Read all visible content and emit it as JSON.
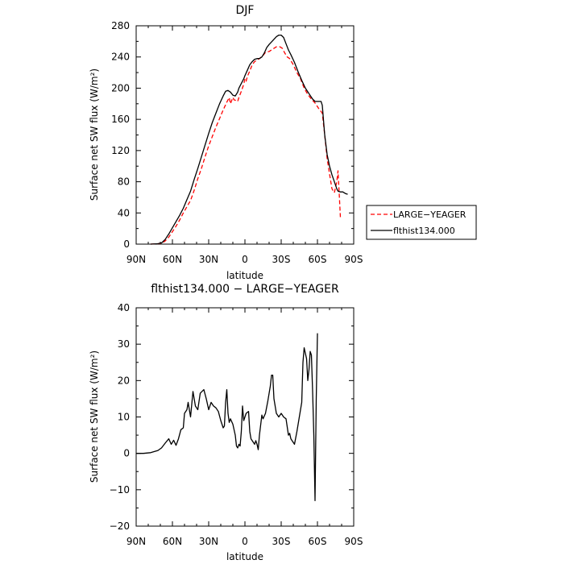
{
  "chart_data": [
    {
      "type": "line",
      "title": "DJF",
      "xlabel": "latitude",
      "ylabel": "Surface net SW flux (W/m²)",
      "xlim": [
        90,
        -90
      ],
      "ylim": [
        0,
        280
      ],
      "xticks": [
        90,
        60,
        30,
        0,
        -30,
        -60,
        -90
      ],
      "xtick_labels": [
        "90N",
        "60N",
        "30N",
        "0",
        "30S",
        "60S",
        "90S"
      ],
      "yticks": [
        0,
        40,
        80,
        120,
        160,
        200,
        240,
        280
      ],
      "ytick_labels": [
        "0",
        "40",
        "80",
        "120",
        "160",
        "200",
        "240",
        "280"
      ],
      "legend": "right",
      "series": [
        {
          "name": "LARGE−YEAGER",
          "color": "#ff0000",
          "dash": true,
          "points": [
            [
              78,
              0
            ],
            [
              72,
              0.5
            ],
            [
              69,
              1
            ],
            [
              66,
              4
            ],
            [
              63,
              9
            ],
            [
              60,
              16
            ],
            [
              57,
              23
            ],
            [
              54,
              31
            ],
            [
              51,
              40
            ],
            [
              48,
              48
            ],
            [
              45,
              56
            ],
            [
              42,
              69
            ],
            [
              39,
              84
            ],
            [
              36,
              97
            ],
            [
              33,
              112
            ],
            [
              30,
              126
            ],
            [
              27,
              138
            ],
            [
              24,
              150
            ],
            [
              21,
              161
            ],
            [
              18,
              172
            ],
            [
              15,
              182
            ],
            [
              13,
              188
            ],
            [
              12,
              180
            ],
            [
              11,
              184
            ],
            [
              10,
              188
            ],
            [
              9,
              185
            ],
            [
              7,
              184
            ],
            [
              6,
              183
            ],
            [
              5,
              188
            ],
            [
              3,
              196
            ],
            [
              1,
              205
            ],
            [
              0,
              212
            ],
            [
              -1,
              209
            ],
            [
              -2,
              215
            ],
            [
              -4,
              222
            ],
            [
              -6,
              230
            ],
            [
              -8,
              234
            ],
            [
              -10,
              236
            ],
            [
              -12,
              238
            ],
            [
              -15,
              242
            ],
            [
              -17,
              246
            ],
            [
              -20,
              247
            ],
            [
              -23,
              250
            ],
            [
              -26,
              253
            ],
            [
              -29,
              253
            ],
            [
              -31,
              251
            ],
            [
              -33,
              245
            ],
            [
              -35,
              240
            ],
            [
              -37,
              238
            ],
            [
              -40,
              230
            ],
            [
              -43,
              220
            ],
            [
              -46,
              212
            ],
            [
              -49,
              200
            ],
            [
              -52,
              192
            ],
            [
              -55,
              186
            ],
            [
              -58,
              181
            ],
            [
              -61,
              174
            ],
            [
              -64,
              168
            ],
            [
              -66,
              140
            ],
            [
              -68,
              110
            ],
            [
              -70,
              90
            ],
            [
              -72,
              71
            ],
            [
              -74,
              66
            ],
            [
              -76,
              80
            ],
            [
              -77,
              94
            ],
            [
              -78,
              65
            ],
            [
              -79,
              34
            ]
          ]
        },
        {
          "name": "flthist134.000",
          "color": "#000000",
          "dash": false,
          "points": [
            [
              78,
              0
            ],
            [
              72,
              0.5
            ],
            [
              69,
              1.5
            ],
            [
              66,
              6
            ],
            [
              63,
              13
            ],
            [
              60,
              21
            ],
            [
              57,
              29
            ],
            [
              54,
              37
            ],
            [
              51,
              46
            ],
            [
              48,
              57
            ],
            [
              45,
              68
            ],
            [
              42,
              83
            ],
            [
              39,
              97
            ],
            [
              36,
              112
            ],
            [
              33,
              127
            ],
            [
              30,
              142
            ],
            [
              27,
              156
            ],
            [
              24,
              168
            ],
            [
              21,
              180
            ],
            [
              18,
              190
            ],
            [
              16,
              196
            ],
            [
              14,
              197
            ],
            [
              12,
              195
            ],
            [
              10,
              191
            ],
            [
              8,
              190
            ],
            [
              6,
              195
            ],
            [
              5,
              200
            ],
            [
              3,
              206
            ],
            [
              1,
              212
            ],
            [
              0,
              216
            ],
            [
              -2,
              223
            ],
            [
              -4,
              230
            ],
            [
              -6,
              234
            ],
            [
              -8,
              237
            ],
            [
              -10,
              238
            ],
            [
              -12,
              238
            ],
            [
              -14,
              240
            ],
            [
              -16,
              245
            ],
            [
              -18,
              252
            ],
            [
              -20,
              256
            ],
            [
              -23,
              261
            ],
            [
              -26,
              266
            ],
            [
              -28,
              268
            ],
            [
              -30,
              268
            ],
            [
              -32,
              265
            ],
            [
              -34,
              257
            ],
            [
              -36,
              249
            ],
            [
              -38,
              243
            ],
            [
              -41,
              233
            ],
            [
              -44,
              221
            ],
            [
              -47,
              210
            ],
            [
              -50,
              200
            ],
            [
              -53,
              193
            ],
            [
              -56,
              186
            ],
            [
              -58,
              183
            ],
            [
              -61,
              183
            ],
            [
              -63,
              183
            ],
            [
              -64,
              178
            ],
            [
              -66,
              140
            ],
            [
              -68,
              115
            ],
            [
              -70,
              100
            ],
            [
              -72,
              89
            ],
            [
              -74,
              80
            ],
            [
              -76,
              71
            ],
            [
              -77,
              68
            ],
            [
              -79,
              67
            ],
            [
              -81,
              67
            ],
            [
              -83,
              65
            ],
            [
              -85,
              64
            ]
          ]
        }
      ]
    },
    {
      "type": "line",
      "title": "flthist134.000 − LARGE−YEAGER",
      "xlabel": "latitude",
      "ylabel": "Surface net SW flux (W/m²)",
      "xlim": [
        90,
        -90
      ],
      "ylim": [
        -20,
        40
      ],
      "xticks": [
        90,
        60,
        30,
        0,
        -30,
        -60,
        -90
      ],
      "xtick_labels": [
        "90N",
        "60N",
        "30N",
        "0",
        "30S",
        "60S",
        "90S"
      ],
      "yticks": [
        -20,
        -10,
        0,
        10,
        20,
        30,
        40
      ],
      "ytick_labels": [
        "−20",
        "−10",
        "0",
        "10",
        "20",
        "30",
        "40"
      ],
      "series": [
        {
          "color": "#000000",
          "dash": false,
          "points": [
            [
              90,
              0
            ],
            [
              84,
              0
            ],
            [
              78,
              0.2
            ],
            [
              72,
              0.8
            ],
            [
              69,
              1.5
            ],
            [
              66,
              2.8
            ],
            [
              63,
              4
            ],
            [
              61,
              2.5
            ],
            [
              59,
              3.6
            ],
            [
              57,
              2.2
            ],
            [
              55,
              4
            ],
            [
              53,
              6.5
            ],
            [
              51,
              7
            ],
            [
              50,
              11
            ],
            [
              48,
              12
            ],
            [
              47,
              14
            ],
            [
              45,
              10
            ],
            [
              43,
              17
            ],
            [
              41,
              13
            ],
            [
              39,
              12
            ],
            [
              37,
              16.5
            ],
            [
              34,
              17.5
            ],
            [
              32,
              15
            ],
            [
              30,
              12
            ],
            [
              28,
              14
            ],
            [
              26,
              13
            ],
            [
              24,
              12.5
            ],
            [
              22,
              11.5
            ],
            [
              20,
              9
            ],
            [
              18,
              7
            ],
            [
              17,
              7.5
            ],
            [
              16,
              14
            ],
            [
              15,
              17.5
            ],
            [
              14,
              11
            ],
            [
              13,
              8.5
            ],
            [
              12,
              9.5
            ],
            [
              10,
              8
            ],
            [
              8,
              5
            ],
            [
              7,
              2
            ],
            [
              6,
              1.5
            ],
            [
              5,
              2.5
            ],
            [
              4,
              2
            ],
            [
              3,
              6
            ],
            [
              2,
              13
            ],
            [
              1,
              9
            ],
            [
              -1,
              11
            ],
            [
              -3,
              11.5
            ],
            [
              -4,
              6
            ],
            [
              -5,
              4
            ],
            [
              -7,
              3
            ],
            [
              -8,
              2.5
            ],
            [
              -9,
              3.5
            ],
            [
              -10,
              2.5
            ],
            [
              -11,
              1
            ],
            [
              -12,
              5
            ],
            [
              -14,
              10.5
            ],
            [
              -15,
              9.5
            ],
            [
              -17,
              11
            ],
            [
              -19,
              14.5
            ],
            [
              -21,
              18.5
            ],
            [
              -22,
              21.5
            ],
            [
              -23,
              21.5
            ],
            [
              -24,
              15
            ],
            [
              -26,
              11
            ],
            [
              -28,
              10
            ],
            [
              -30,
              11
            ],
            [
              -32,
              10
            ],
            [
              -34,
              9.5
            ],
            [
              -36,
              5
            ],
            [
              -37,
              5.5
            ],
            [
              -38,
              4
            ],
            [
              -40,
              3
            ],
            [
              -41,
              2.5
            ],
            [
              -43,
              6
            ],
            [
              -45,
              10
            ],
            [
              -47,
              14
            ],
            [
              -48,
              25
            ],
            [
              -49,
              29
            ],
            [
              -50,
              27.5
            ],
            [
              -51,
              26
            ],
            [
              -52,
              20
            ],
            [
              -53,
              23
            ],
            [
              -54,
              28
            ],
            [
              -55,
              27
            ],
            [
              -56,
              17
            ],
            [
              -57,
              5
            ],
            [
              -58,
              -13
            ],
            [
              -59,
              15
            ],
            [
              -60,
              33
            ]
          ]
        }
      ]
    }
  ]
}
